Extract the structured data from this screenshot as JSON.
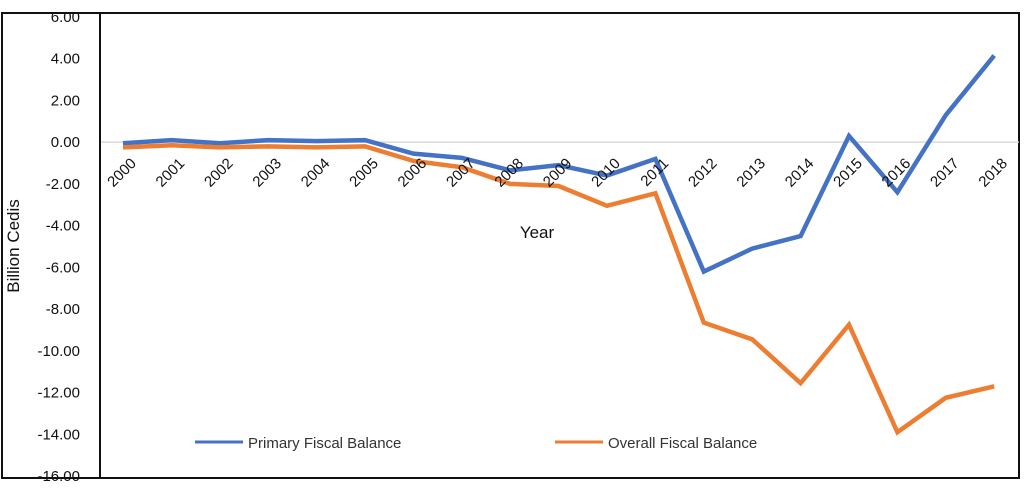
{
  "chart_data": {
    "type": "line",
    "title": "",
    "xlabel": "Year",
    "ylabel": "Billion Cedis",
    "ylim": [
      -16,
      6
    ],
    "yticks": [
      "6.00",
      "4.00",
      "2.00",
      "0.00",
      "-2.00",
      "-4.00",
      "-6.00",
      "-8.00",
      "-10.00",
      "-12.00",
      "-14.00",
      "-16.00"
    ],
    "ytick_values": [
      6,
      4,
      2,
      0,
      -2,
      -4,
      -6,
      -8,
      -10,
      -12,
      -14,
      -16
    ],
    "categories": [
      "2000",
      "2001",
      "2002",
      "2003",
      "2004",
      "2005",
      "2006",
      "2007",
      "2008",
      "2009",
      "2010",
      "2011",
      "2012",
      "2013",
      "2014",
      "2015",
      "2016",
      "2017",
      "2018"
    ],
    "legend_position": "bottom",
    "series": [
      {
        "name": "Primary Fiscal Balance",
        "color": "#4472C4",
        "values": [
          -0.05,
          0.1,
          -0.05,
          0.1,
          0.05,
          0.1,
          -0.55,
          -0.75,
          -1.35,
          -1.1,
          -1.6,
          -0.8,
          -6.2,
          -5.1,
          -4.5,
          0.3,
          -2.4,
          1.3,
          4.15
        ]
      },
      {
        "name": "Overall Fiscal Balance",
        "color": "#ED7D31",
        "values": [
          -0.25,
          -0.15,
          -0.25,
          -0.2,
          -0.25,
          -0.2,
          -0.9,
          -1.2,
          -2.0,
          -2.1,
          -3.05,
          -2.45,
          -8.65,
          -9.45,
          -11.55,
          -8.75,
          -13.9,
          -12.25,
          -11.7
        ]
      }
    ]
  }
}
